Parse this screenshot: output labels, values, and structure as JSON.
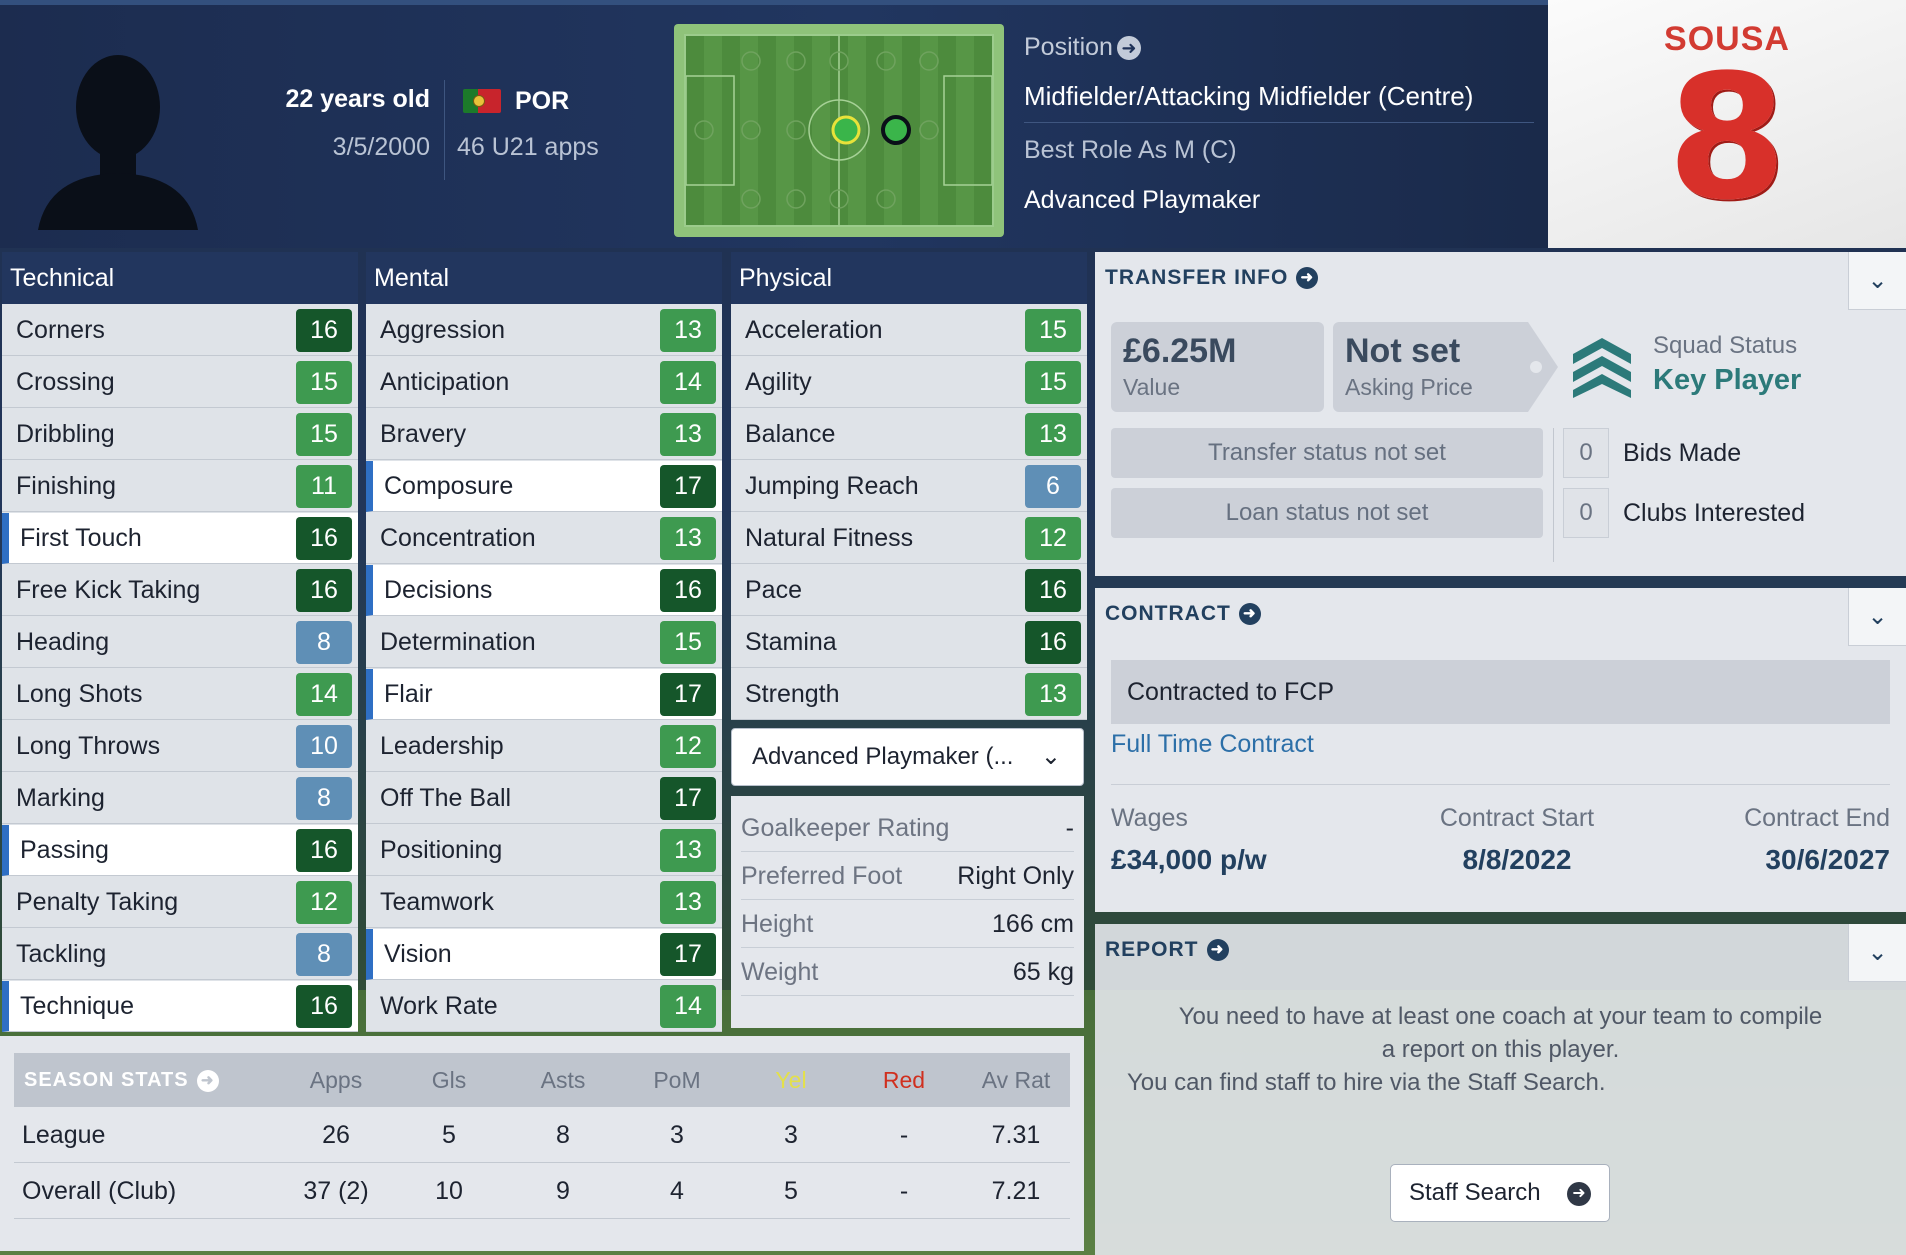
{
  "player": {
    "age": "22 years old",
    "dob": "3/5/2000",
    "nationality": "POR",
    "u21_apps": "46 U21 apps",
    "position_label": "Position",
    "position_value": "Midfielder/Attacking Midfielder (Centre)",
    "best_role": "Best Role As M (C)",
    "role_name": "Advanced Playmaker",
    "shirt_name": "SOUSA",
    "shirt_number": "8"
  },
  "technical": {
    "title": "Technical",
    "rows": [
      {
        "name": "Corners",
        "value": "16"
      },
      {
        "name": "Crossing",
        "value": "15"
      },
      {
        "name": "Dribbling",
        "value": "15"
      },
      {
        "name": "Finishing",
        "value": "11"
      },
      {
        "name": "First Touch",
        "value": "16"
      },
      {
        "name": "Free Kick Taking",
        "value": "16"
      },
      {
        "name": "Heading",
        "value": "8"
      },
      {
        "name": "Long Shots",
        "value": "14"
      },
      {
        "name": "Long Throws",
        "value": "10"
      },
      {
        "name": "Marking",
        "value": "8"
      },
      {
        "name": "Passing",
        "value": "16"
      },
      {
        "name": "Penalty Taking",
        "value": "12"
      },
      {
        "name": "Tackling",
        "value": "8"
      },
      {
        "name": "Technique",
        "value": "16"
      }
    ]
  },
  "mental": {
    "title": "Mental",
    "rows": [
      {
        "name": "Aggression",
        "value": "13"
      },
      {
        "name": "Anticipation",
        "value": "14"
      },
      {
        "name": "Bravery",
        "value": "13"
      },
      {
        "name": "Composure",
        "value": "17"
      },
      {
        "name": "Concentration",
        "value": "13"
      },
      {
        "name": "Decisions",
        "value": "16"
      },
      {
        "name": "Determination",
        "value": "15"
      },
      {
        "name": "Flair",
        "value": "17"
      },
      {
        "name": "Leadership",
        "value": "12"
      },
      {
        "name": "Off The Ball",
        "value": "17"
      },
      {
        "name": "Positioning",
        "value": "13"
      },
      {
        "name": "Teamwork",
        "value": "13"
      },
      {
        "name": "Vision",
        "value": "17"
      },
      {
        "name": "Work Rate",
        "value": "14"
      }
    ]
  },
  "physical": {
    "title": "Physical",
    "rows": [
      {
        "name": "Acceleration",
        "value": "15"
      },
      {
        "name": "Agility",
        "value": "15"
      },
      {
        "name": "Balance",
        "value": "13"
      },
      {
        "name": "Jumping Reach",
        "value": "6"
      },
      {
        "name": "Natural Fitness",
        "value": "12"
      },
      {
        "name": "Pace",
        "value": "16"
      },
      {
        "name": "Stamina",
        "value": "16"
      },
      {
        "name": "Strength",
        "value": "13"
      }
    ],
    "role_select": "Advanced Playmaker (...",
    "info": [
      {
        "label": "Goalkeeper Rating",
        "value": "-"
      },
      {
        "label": "Preferred Foot",
        "value": "Right Only"
      },
      {
        "label": "Height",
        "value": "166 cm"
      },
      {
        "label": "Weight",
        "value": "65 kg"
      }
    ]
  },
  "transfer": {
    "title": "TRANSFER INFO",
    "value": "£6.25M",
    "value_label": "Value",
    "asking": "Not set",
    "asking_label": "Asking Price",
    "squad_status_label": "Squad Status",
    "squad_status": "Key Player",
    "transfer_status": "Transfer status not set",
    "loan_status": "Loan status not set",
    "bids_count": "0",
    "bids_label": "Bids Made",
    "clubs_count": "0",
    "clubs_label": "Clubs Interested"
  },
  "contract": {
    "title": "CONTRACT",
    "club": "Contracted to FCP",
    "type": "Full Time Contract",
    "wages_label": "Wages",
    "wages": "£34,000 p/w",
    "start_label": "Contract Start",
    "start": "8/8/2022",
    "end_label": "Contract End",
    "end": "30/6/2027"
  },
  "report": {
    "title": "REPORT",
    "line1": "You need to have at least one coach at your team to compile",
    "line2": "a report on this player.",
    "line3": "You can find staff to hire via the Staff Search.",
    "button": "Staff Search"
  },
  "season_stats": {
    "title": "SEASON STATS",
    "columns": [
      "Apps",
      "Gls",
      "Asts",
      "PoM",
      "Yel",
      "Red",
      "Av Rat"
    ],
    "rows": [
      {
        "label": "League",
        "values": [
          "26",
          "5",
          "8",
          "3",
          "3",
          "-",
          "7.31"
        ]
      },
      {
        "label": "Overall (Club)",
        "values": [
          "37 (2)",
          "10",
          "9",
          "4",
          "5",
          "-",
          "7.21"
        ]
      }
    ]
  },
  "colors": {
    "header_bg": "#213660",
    "badge_dark": "#15562a",
    "badge_green": "#3e9a50",
    "badge_blue": "#5f8fb6",
    "yellow_card": "#d7d43a",
    "red_card": "#d0301f",
    "accent": "#22405f"
  }
}
